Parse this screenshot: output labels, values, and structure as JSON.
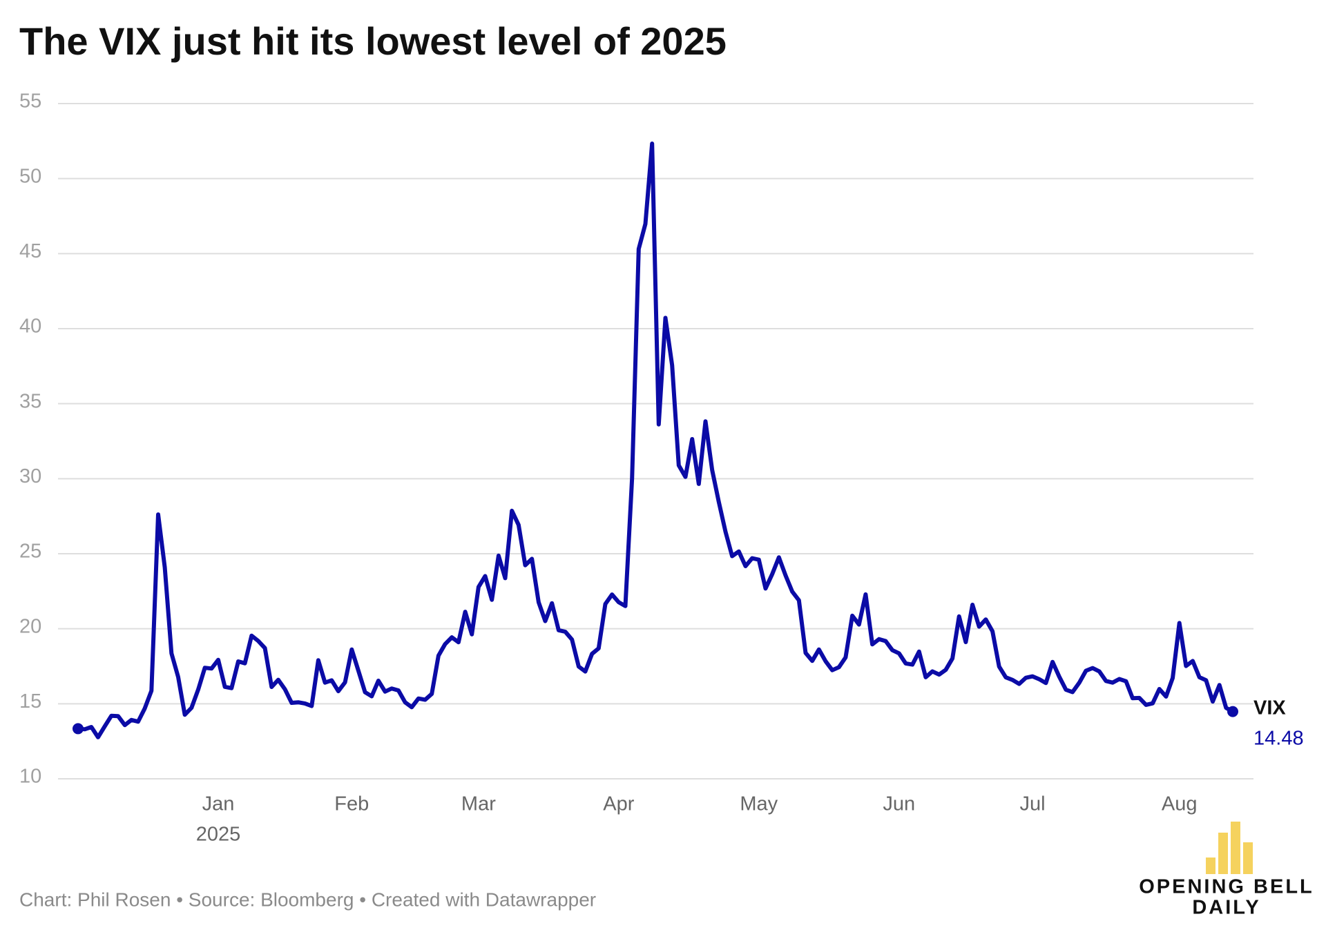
{
  "chart_data": {
    "type": "line",
    "title": "The VIX just hit its lowest level of 2025",
    "categories": [
      null,
      null,
      null,
      null,
      null,
      null,
      null,
      null,
      null,
      null,
      null,
      null,
      null,
      null,
      null,
      null,
      null,
      null,
      null,
      null,
      null,
      "Jan",
      null,
      null,
      null,
      null,
      null,
      null,
      null,
      null,
      null,
      null,
      null,
      null,
      null,
      null,
      null,
      null,
      null,
      null,
      null,
      "Feb",
      null,
      null,
      null,
      null,
      null,
      null,
      null,
      null,
      null,
      null,
      null,
      null,
      null,
      null,
      null,
      null,
      null,
      null,
      "Mar",
      null,
      null,
      null,
      null,
      null,
      null,
      null,
      null,
      null,
      null,
      null,
      null,
      null,
      null,
      null,
      null,
      null,
      null,
      null,
      null,
      "Apr",
      null,
      null,
      null,
      null,
      null,
      null,
      null,
      null,
      null,
      null,
      null,
      null,
      null,
      null,
      null,
      null,
      null,
      null,
      null,
      null,
      "May",
      null,
      null,
      null,
      null,
      null,
      null,
      null,
      null,
      null,
      null,
      null,
      null,
      null,
      null,
      null,
      null,
      null,
      null,
      null,
      null,
      "Jun",
      null,
      null,
      null,
      null,
      null,
      null,
      null,
      null,
      null,
      null,
      null,
      null,
      null,
      null,
      null,
      null,
      null,
      null,
      null,
      "Jul",
      null,
      null,
      null,
      null,
      null,
      null,
      null,
      null,
      null,
      null,
      null,
      null,
      null,
      null,
      null,
      null,
      null,
      null,
      null,
      null,
      null,
      "Aug",
      null,
      null,
      null,
      null,
      null,
      null,
      null,
      null
    ],
    "year_label": "2025",
    "series": [
      {
        "name": "VIX",
        "color": "#0b0ba6",
        "values": [
          13.34,
          13.3,
          13.45,
          12.77,
          13.5,
          14.2,
          14.18,
          13.58,
          13.92,
          13.81,
          14.69,
          15.87,
          27.62,
          24.09,
          18.36,
          16.78,
          14.27,
          14.73,
          15.95,
          17.4,
          17.35,
          17.93,
          16.13,
          16.04,
          17.82,
          17.7,
          19.54,
          19.19,
          18.71,
          16.12,
          16.6,
          15.97,
          15.06,
          15.1,
          15.02,
          14.85,
          17.9,
          16.41,
          16.56,
          15.84,
          16.43,
          18.62,
          17.21,
          15.77,
          15.5,
          16.54,
          15.81,
          16.02,
          15.89,
          15.1,
          14.77,
          15.35,
          15.27,
          15.66,
          18.21,
          18.98,
          19.43,
          19.1,
          21.13,
          19.63,
          22.78,
          23.51,
          21.93,
          24.87,
          23.37,
          27.86,
          26.92,
          24.23,
          24.66,
          21.77,
          20.51,
          21.7,
          19.9,
          19.8,
          19.28,
          17.48,
          17.15,
          18.33,
          18.69,
          21.65,
          22.28,
          21.77,
          21.51,
          30.02,
          45.31,
          46.98,
          52.33,
          33.62,
          40.72,
          37.56,
          30.89,
          30.12,
          32.64,
          29.65,
          33.82,
          30.57,
          28.45,
          26.47,
          24.84,
          25.15,
          24.17,
          24.7,
          24.6,
          22.68,
          23.64,
          24.76,
          23.55,
          22.48,
          21.9,
          18.39,
          17.86,
          18.62,
          17.83,
          17.24,
          17.44,
          18.09,
          20.87,
          20.28,
          22.29,
          18.96,
          19.31,
          19.18,
          18.57,
          18.36,
          17.69,
          17.61,
          18.48,
          16.77,
          17.16,
          16.95,
          17.26,
          18.02,
          20.82,
          19.11,
          21.6,
          20.14,
          20.62,
          19.83,
          17.48,
          16.76,
          16.59,
          16.32,
          16.73,
          16.83,
          16.64,
          16.38,
          17.79,
          16.81,
          15.94,
          15.78,
          16.4,
          17.2,
          17.38,
          17.16,
          16.52,
          16.41,
          16.65,
          16.5,
          15.37,
          15.39,
          14.93,
          15.03,
          15.98,
          15.48,
          16.72,
          20.38,
          17.52,
          17.85,
          16.77,
          16.57,
          15.15,
          16.25,
          14.73,
          14.48
        ]
      }
    ],
    "ylim": [
      10,
      55
    ],
    "yticks": [
      10,
      15,
      20,
      25,
      30,
      35,
      40,
      45,
      50,
      55
    ],
    "grid": true,
    "source": "Chart: Phil Rosen • Source: Bloomberg • Created with Datawrapper",
    "logo": [
      "OPENING BELL",
      "DAILY"
    ]
  }
}
